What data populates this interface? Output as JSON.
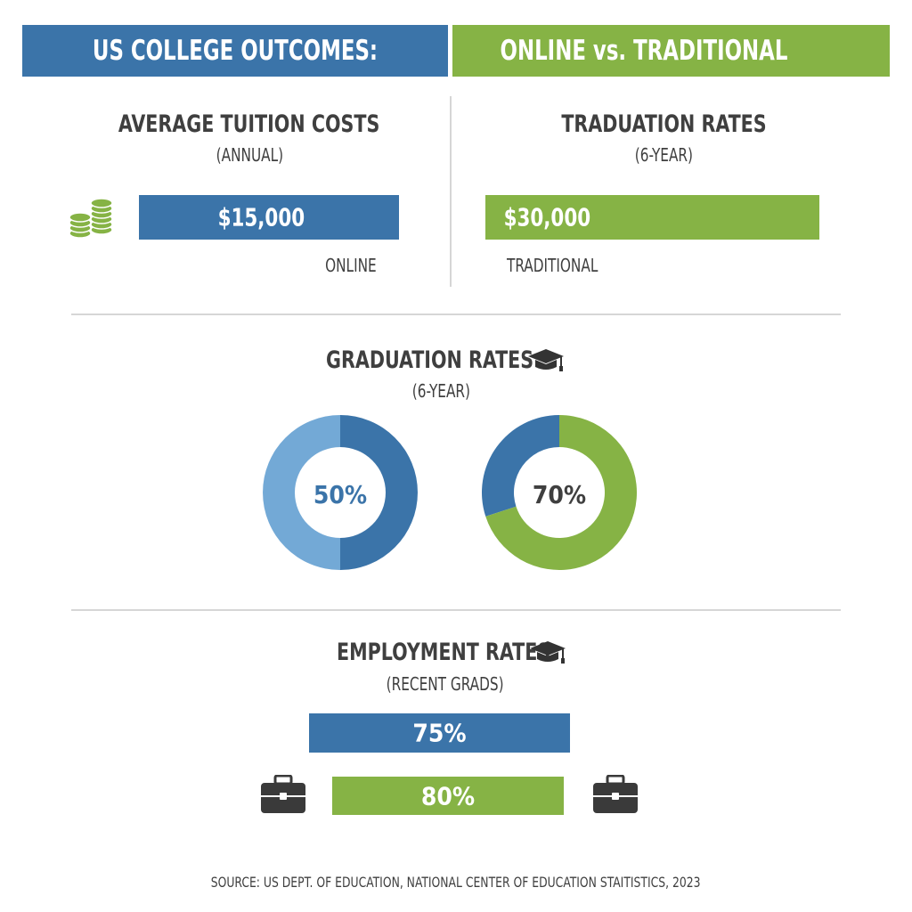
{
  "colors": {
    "blue": "#3b74a9",
    "blue_light": "#73a9d6",
    "green": "#86b345",
    "text": "#3f3f3f",
    "rule": "#d6d6d6"
  },
  "header": {
    "left": "US COLLEGE OUTCOMES:",
    "right": "ONLINE vs. TRADITIONAL"
  },
  "tuition": {
    "title": "AVERAGE TUITION COSTS",
    "subtitle": "(ANNUAL)",
    "icon": "coin-stack-icon"
  },
  "graduation_top": {
    "title": "TRADUATION RATES",
    "subtitle": "(6-YEAR)"
  },
  "graduation": {
    "title": "GRADUATION RATES",
    "subtitle": "(6-YEAR)",
    "icon": "graduation-cap-icon"
  },
  "employment": {
    "title": "EMPLOYMENT RATES",
    "subtitle": "(RECENT GRADS)",
    "icon": "graduation-cap-icon",
    "left_icon": "briefcase-icon",
    "right_icon": "briefcase-icon"
  },
  "source": "SOURCE: US DEPT. OF EDUCATION, NATIONAL CENTER OF EDUCATION STAITISTICS, 2023",
  "chart_data": [
    {
      "type": "bar",
      "title": "AVERAGE TUITION COSTS",
      "categories": [
        "ONLINE",
        "TRADITIONAL"
      ],
      "values": [
        15000,
        30000
      ],
      "labels": [
        "$15,000",
        "$30,000"
      ],
      "colors": [
        "#3b74a9",
        "#86b345"
      ]
    },
    {
      "type": "pie",
      "title": "GRADUATION RATES",
      "slices": [
        {
          "value": 50,
          "label": "50%",
          "color": "#3b74a9",
          "rest_color": "#73a9d6"
        },
        {
          "value": 70,
          "label": "70%",
          "color": "#86b345",
          "rest_color": "#3b74a9"
        }
      ]
    },
    {
      "type": "bar",
      "title": "EMPLOYMENT RATES",
      "values": [
        75,
        80
      ],
      "labels": [
        "75%",
        "80%"
      ],
      "colors": [
        "#3b74a9",
        "#86b345"
      ]
    }
  ]
}
